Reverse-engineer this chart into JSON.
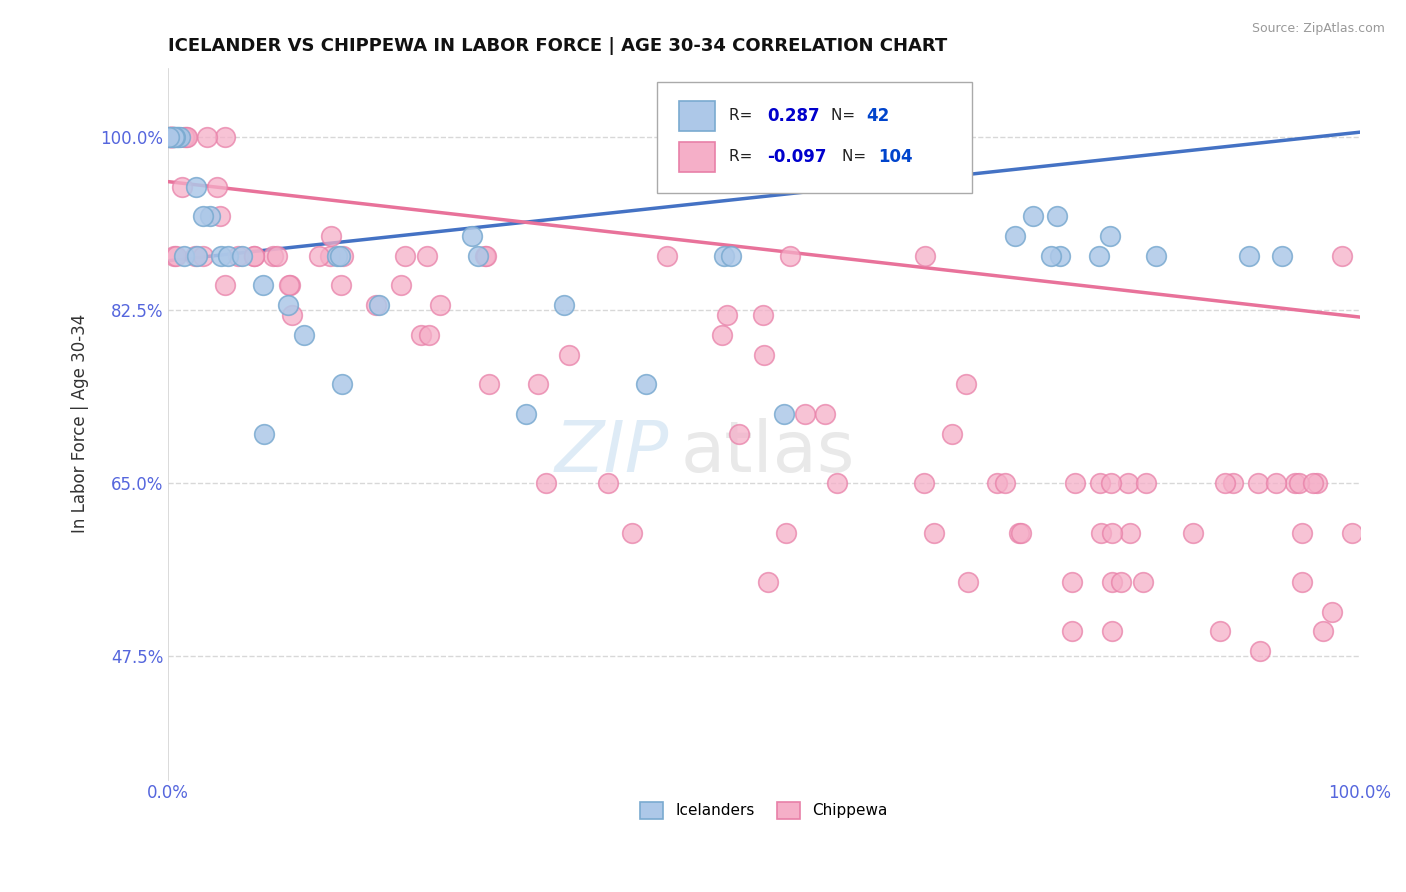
{
  "title": "ICELANDER VS CHIPPEWA IN LABOR FORCE | AGE 30-34 CORRELATION CHART",
  "source_text": "Source: ZipAtlas.com",
  "ylabel": "In Labor Force | Age 30-34",
  "xlim": [
    0.0,
    1.0
  ],
  "ylim": [
    0.35,
    1.07
  ],
  "ytick_vals": [
    0.475,
    0.65,
    0.825,
    1.0
  ],
  "ytick_labels": [
    "47.5%",
    "65.0%",
    "82.5%",
    "100.0%"
  ],
  "xtick_vals": [
    0.0,
    1.0
  ],
  "xtick_labels": [
    "0.0%",
    "100.0%"
  ],
  "watermark_zip": "ZIP",
  "watermark_atlas": "atlas",
  "icelander_R": 0.287,
  "icelander_N": 42,
  "chippewa_R": -0.097,
  "chippewa_N": 104,
  "icelander_color": "#adc8e8",
  "chippewa_color": "#f5afc8",
  "icelander_edge": "#7aaad0",
  "chippewa_edge": "#e880a8",
  "icelander_line_color": "#4472c4",
  "chippewa_line_color": "#e8729a",
  "background_color": "#ffffff",
  "grid_color": "#d8d8d8",
  "tick_color": "#5566dd",
  "title_color": "#111111",
  "source_color": "#999999",
  "ylabel_color": "#333333",
  "legend_R_color": "#0000cc",
  "legend_N_color": "#0044cc",
  "icelander_trend_start_y": 0.875,
  "icelander_trend_end_y": 1.005,
  "chippewa_trend_start_y": 0.955,
  "chippewa_trend_end_y": 0.818
}
